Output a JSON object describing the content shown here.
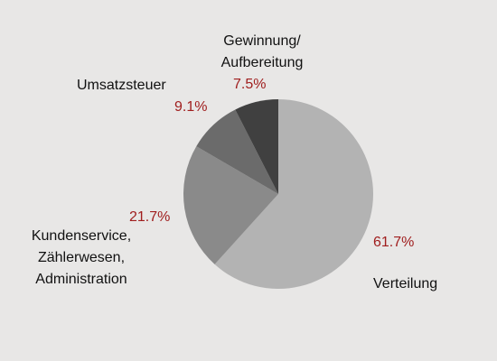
{
  "chart_data": {
    "type": "pie",
    "categories": [
      "Verteilung",
      "Kundenservice,\nZählerwesen,\nAdministration",
      "Umsatzsteuer",
      "Gewinnung/\nAufbereitung"
    ],
    "values": [
      61.7,
      21.7,
      9.1,
      7.5
    ],
    "value_labels": [
      "61.7%",
      "21.7%",
      "9.1%",
      "7.5%"
    ],
    "colors": [
      "#b3b3b3",
      "#8a8a8a",
      "#6b6b6b",
      "#404040"
    ]
  }
}
